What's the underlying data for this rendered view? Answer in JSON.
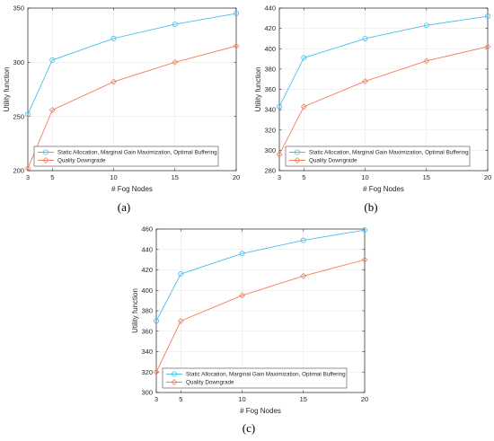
{
  "colors": {
    "series1": "#4dbeee",
    "series2": "#f07f5a"
  },
  "chart_data": [
    {
      "type": "line",
      "caption": "(a)",
      "x": [
        3,
        5,
        10,
        15,
        20
      ],
      "xlabel": "# Fog Nodes",
      "ylabel": "Utility function",
      "xlim": [
        3,
        20
      ],
      "ylim": [
        200,
        350
      ],
      "xticks": [
        "3",
        "5",
        "10",
        "15",
        "20"
      ],
      "yticks": [
        "200",
        "250",
        "300",
        "350"
      ],
      "grid": true,
      "legend_position": "bottom-left",
      "series": [
        {
          "name": "Static Allocation, Marginal Gain Maximization, Optimal Buffering",
          "marker": "circle",
          "values": [
            252,
            302,
            322,
            335,
            345
          ]
        },
        {
          "name": "Quality Downgrade",
          "marker": "diamond",
          "values": [
            202,
            256,
            282,
            300,
            315
          ]
        }
      ]
    },
    {
      "type": "line",
      "caption": "(b)",
      "x": [
        3,
        5,
        10,
        15,
        20
      ],
      "xlabel": "# Fog Nodes",
      "ylabel": "Utility function",
      "xlim": [
        3,
        20
      ],
      "ylim": [
        280,
        440
      ],
      "xticks": [
        "3",
        "5",
        "10",
        "15",
        "20"
      ],
      "yticks": [
        "280",
        "300",
        "320",
        "340",
        "360",
        "380",
        "400",
        "420",
        "440"
      ],
      "grid": true,
      "legend_position": "bottom-left",
      "series": [
        {
          "name": "Static Allocation, Marginal Gain Maximization, Optimal Buffering",
          "marker": "circle",
          "values": [
            343,
            391,
            410,
            423,
            432
          ]
        },
        {
          "name": "Quality Downgrade",
          "marker": "diamond",
          "values": [
            296,
            343,
            368,
            388,
            402
          ]
        }
      ]
    },
    {
      "type": "line",
      "caption": "(c)",
      "x": [
        3,
        5,
        10,
        15,
        20
      ],
      "xlabel": "# Fog Nodes",
      "ylabel": "Utility function",
      "xlim": [
        3,
        20
      ],
      "ylim": [
        300,
        460
      ],
      "xticks": [
        "3",
        "5",
        "10",
        "15",
        "20"
      ],
      "yticks": [
        "300",
        "320",
        "340",
        "360",
        "380",
        "400",
        "420",
        "440",
        "460"
      ],
      "grid": true,
      "legend_position": "bottom-left",
      "series": [
        {
          "name": "Static Allocation, Marginal Gain Maximization, Optimal Buffering",
          "marker": "circle",
          "values": [
            370,
            416,
            436,
            449,
            459
          ]
        },
        {
          "name": "Quality Downgrade",
          "marker": "diamond",
          "values": [
            320,
            370,
            395,
            414,
            430
          ]
        }
      ]
    }
  ]
}
